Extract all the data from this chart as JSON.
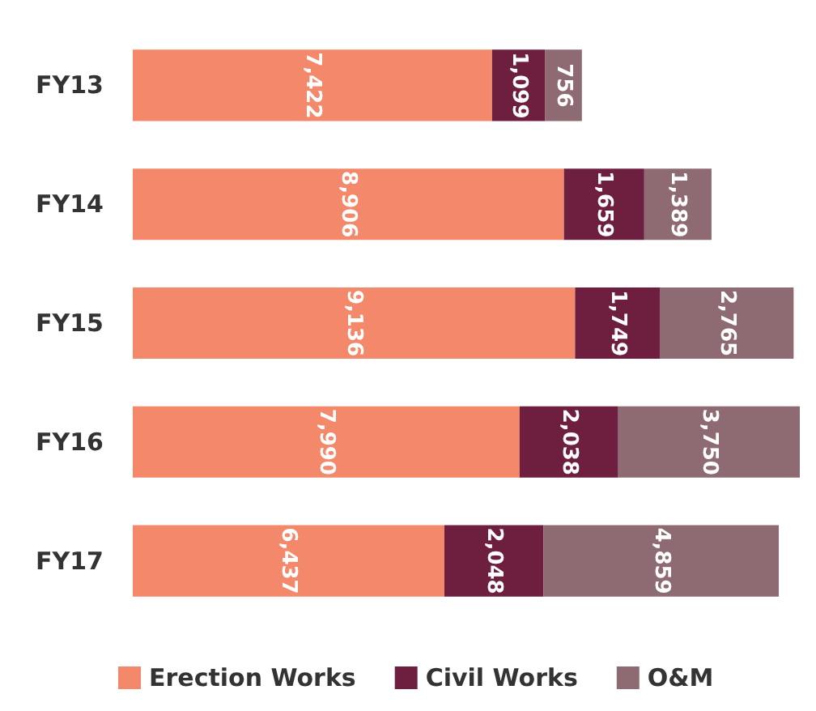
{
  "chart_data": {
    "type": "bar",
    "orientation": "horizontal",
    "stacked": true,
    "legend": "bottom",
    "categories": [
      "FY13",
      "FY14",
      "FY15",
      "FY16",
      "FY17"
    ],
    "series": [
      {
        "name": "Erection Works",
        "color": "#f4886a",
        "values": [
          7422,
          8906,
          9136,
          7990,
          6437
        ],
        "value_labels": [
          "7,422",
          "8,906",
          "9,136",
          "7,990",
          "6,437"
        ]
      },
      {
        "name": "Civil Works",
        "color": "#6e1f3f",
        "values": [
          1099,
          1659,
          1749,
          2038,
          2048
        ],
        "value_labels": [
          "1,099",
          "1,659",
          "1,749",
          "2,038",
          "2,048"
        ]
      },
      {
        "name": "O&M",
        "color": "#8e6a72",
        "values": [
          756,
          1389,
          2765,
          3750,
          4859
        ],
        "value_labels": [
          "756",
          "1,389",
          "2,765",
          "3,750",
          "4,859"
        ]
      }
    ]
  }
}
